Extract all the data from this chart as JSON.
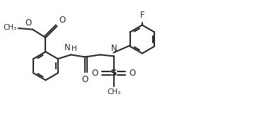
{
  "background_color": "#ffffff",
  "line_color": "#2a2a2a",
  "line_width": 1.5,
  "text_color": "#2a2a2a",
  "font_size": 8.5,
  "fig_width": 3.9,
  "fig_height": 1.71,
  "dpi": 100,
  "xlim": [
    0,
    10
  ],
  "ylim": [
    0,
    4.4
  ]
}
